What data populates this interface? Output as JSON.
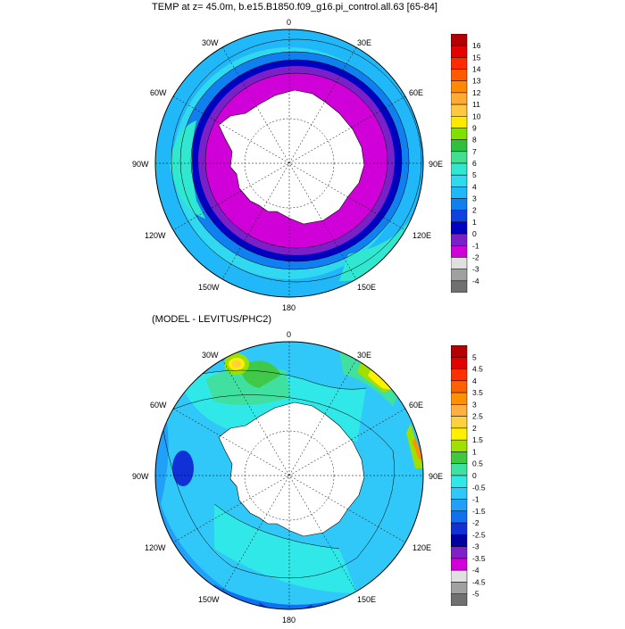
{
  "top": {
    "title": "TEMP at z=  45.0m, b.e15.B1850.f09_g16.pi_control.all.63 [65-84]",
    "colorbar": {
      "labels": [
        "16",
        "15",
        "14",
        "13",
        "12",
        "11",
        "10",
        "9",
        "8",
        "7",
        "6",
        "5",
        "4",
        "3",
        "2",
        "1",
        "0",
        "-1",
        "-2",
        "-3",
        "-4"
      ],
      "colors": [
        "#b40000",
        "#e60000",
        "#ff2a00",
        "#ff5a00",
        "#ff8a00",
        "#ffaa33",
        "#ffc840",
        "#ffe800",
        "#80e000",
        "#30c040",
        "#40e090",
        "#30e8d0",
        "#30d8f0",
        "#20b8f8",
        "#1080f0",
        "#1040e0",
        "#0000c0",
        "#7a20c8",
        "#d000d8",
        "#e0e0e0",
        "#a0a0a0",
        "#707070"
      ]
    }
  },
  "bottom": {
    "title": "(MODEL - LEVITUS/PHC2)",
    "colorbar": {
      "labels": [
        "5",
        "4.5",
        "4",
        "3.5",
        "3",
        "2.5",
        "2",
        "1.5",
        "1",
        "0.5",
        "0",
        "-0.5",
        "-1",
        "-1.5",
        "-2",
        "-2.5",
        "-3",
        "-3.5",
        "-4",
        "-4.5",
        "-5"
      ],
      "colors": [
        "#b40000",
        "#e00000",
        "#ff3000",
        "#ff6000",
        "#ff9000",
        "#ffb040",
        "#ffd040",
        "#fff000",
        "#a0e000",
        "#40c840",
        "#40e0a0",
        "#30e8e8",
        "#30c8f8",
        "#20a0f8",
        "#1070f0",
        "#1030d8",
        "#0000a0",
        "#8020c8",
        "#d000d8",
        "#e0e0e0",
        "#a0a0a0",
        "#707070"
      ]
    }
  },
  "map_labels": {
    "north": "0",
    "south": "180",
    "w30": "30W",
    "e30": "30E",
    "w60": "60W",
    "e60": "60E",
    "w90": "90W",
    "e90": "90E",
    "w120": "120W",
    "e120": "120E",
    "w150": "150W",
    "e150": "150E"
  }
}
